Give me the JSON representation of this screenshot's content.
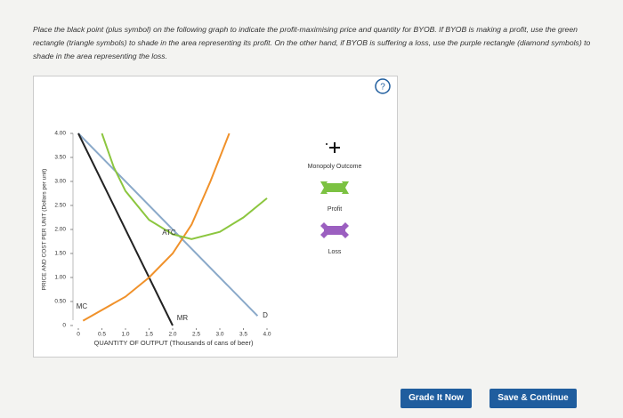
{
  "instructions": "Place the black point (plus symbol) on the following graph to indicate the profit-maximising price and quantity for BYOB. If BYOB is making a profit, use the green rectangle (triangle symbols) to shade in the area representing its profit. On the other hand, if BYOB is suffering a loss, use the purple rectangle (diamond symbols) to shade in the area representing the loss.",
  "help": "?",
  "chart_data": {
    "type": "line",
    "xlabel": "QUANTITY OF OUTPUT (Thousands of cans of beer)",
    "ylabel": "PRICE AND COST PER UNIT (Dollars per unit)",
    "xlim": [
      0,
      4
    ],
    "ylim": [
      0,
      4
    ],
    "xticks": [
      0,
      0.5,
      {
        "value": 1,
        "label": "1.0"
      },
      1.5,
      {
        "value": 2,
        "label": "2.0"
      },
      2.5,
      {
        "value": 3,
        "label": "3.0"
      },
      3.5,
      {
        "value": 4,
        "label": "4.0"
      }
    ],
    "yticks": [
      0,
      {
        "value": 0.5,
        "label": "0.50"
      },
      {
        "value": 1,
        "label": "1.00"
      },
      {
        "value": 1.5,
        "label": "1.50"
      },
      {
        "value": 2,
        "label": "2.00"
      },
      {
        "value": 2.5,
        "label": "2.50"
      },
      {
        "value": 3,
        "label": "3.00"
      },
      {
        "value": 3.5,
        "label": "3.50"
      },
      {
        "value": 4,
        "label": "4.00"
      }
    ],
    "series": [
      {
        "name": "D",
        "color": "#8aa9c9",
        "x": [
          0,
          3.8
        ],
        "values": [
          4,
          0.2
        ]
      },
      {
        "name": "MR",
        "color": "#222222",
        "x": [
          0,
          2
        ],
        "values": [
          4,
          0
        ]
      },
      {
        "name": "MC",
        "color": "#f0912a",
        "x": [
          0.1,
          1,
          1.5,
          2,
          2.4,
          2.8,
          3.2
        ],
        "values": [
          0.1,
          0.6,
          1,
          1.5,
          2.1,
          3,
          4
        ]
      },
      {
        "name": "ATC",
        "color": "#8cc63f",
        "x": [
          0.5,
          0.75,
          1,
          1.5,
          2,
          2.4,
          3,
          3.5,
          4
        ],
        "values": [
          4,
          3.3,
          2.8,
          2.2,
          1.9,
          1.8,
          1.95,
          2.25,
          2.65
        ]
      }
    ]
  },
  "palette": {
    "items": [
      "Monopoly Outcome",
      "Profit",
      "Loss"
    ]
  },
  "buttons": [
    "Grade It Now",
    "Save & Continue"
  ]
}
